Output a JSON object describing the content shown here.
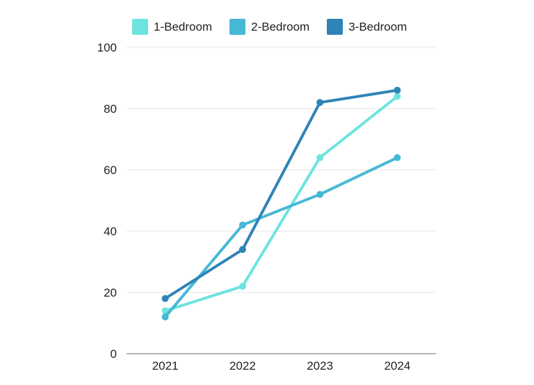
{
  "chart_data": {
    "type": "line",
    "title": "",
    "categories": [
      "2021",
      "2022",
      "2023",
      "2024"
    ],
    "series": [
      {
        "name": "1-Bedroom",
        "color": "#6EE3DF",
        "values": [
          14,
          22,
          64,
          84
        ]
      },
      {
        "name": "2-Bedroom",
        "color": "#46B8D6",
        "values": [
          12,
          42,
          52,
          64
        ]
      },
      {
        "name": "3-Bedroom",
        "color": "#2E84B6",
        "values": [
          18,
          34,
          82,
          86
        ]
      }
    ],
    "ylim": [
      0,
      100
    ],
    "yticks": [
      0,
      20,
      40,
      60,
      80,
      100
    ],
    "grid": "horizontal",
    "legend_position": "top",
    "marker": "circle"
  },
  "colors": {
    "background": "#ffffff",
    "gridline": "#e4e4e4",
    "axis_line": "#b5b5b5",
    "text": "#1f1f1f"
  }
}
